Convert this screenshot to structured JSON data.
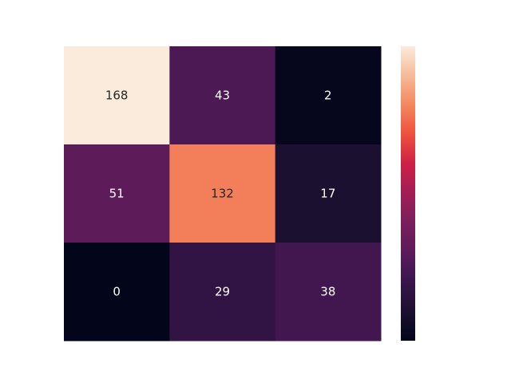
{
  "chart_data": {
    "type": "heatmap",
    "title": "",
    "xlabel": "",
    "ylabel": "",
    "rows": 3,
    "cols": 3,
    "values": [
      [
        168,
        43,
        2
      ],
      [
        51,
        132,
        17
      ],
      [
        0,
        29,
        38
      ]
    ],
    "colormap": "rocket",
    "vmin": 0,
    "vmax": 168,
    "colorbar": true,
    "colorbar_tick_labels": false,
    "axis_tick_labels": false,
    "grid": false
  }
}
